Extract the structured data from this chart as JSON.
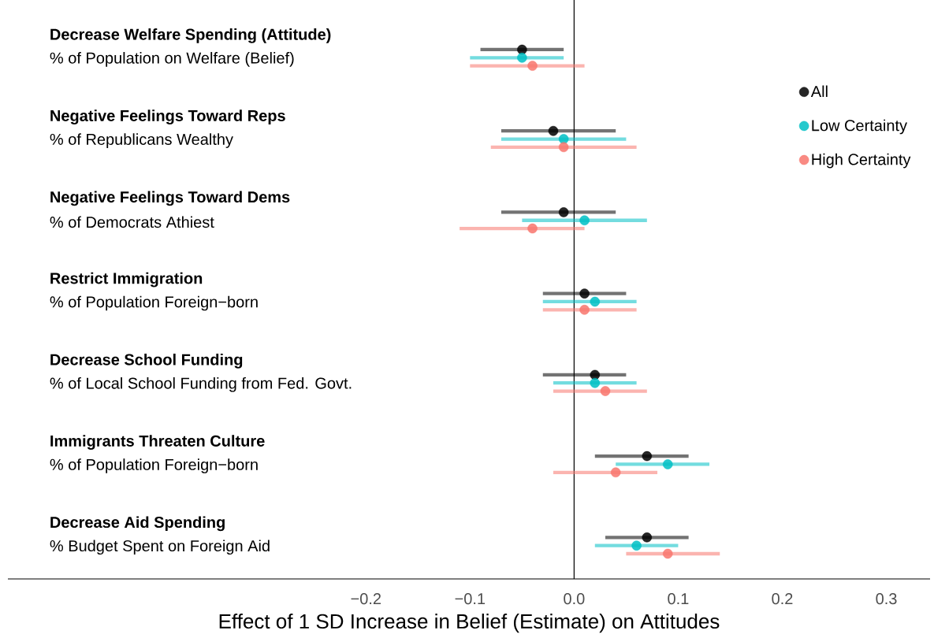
{
  "chart_data": {
    "type": "scatter",
    "orientation": "horizontal",
    "xlabel": "Effect of 1 SD Increase in Belief (Estimate) on Attitudes",
    "categories": [
      "Decrease Welfare Spending (Attitude)",
      "Negative Feelings Toward Reps",
      "Negative Feelings Toward Dems",
      "Restrict Immigration",
      "Decrease School Funding",
      "Immigrants Threaten Culture",
      "Decrease Aid Spending"
    ],
    "annotations": [
      "% of Population on Welfare (Belief)",
      "% of Republicans Wealthy",
      "% of Democrats Athiest",
      "% of Population Foreign−born",
      "% of Local School Funding from Fed. Govt.",
      "% of Population Foreign−born",
      "% Budget Spent on Foreign Aid"
    ],
    "series": [
      {
        "name": "All",
        "color": "#000000",
        "values": [
          -0.05,
          -0.02,
          -0.01,
          0.01,
          0.02,
          0.07,
          0.07
        ],
        "errors": [
          [
            -0.09,
            -0.01
          ],
          [
            -0.07,
            0.04
          ],
          [
            -0.07,
            0.04
          ],
          [
            -0.03,
            0.05
          ],
          [
            -0.03,
            0.05
          ],
          [
            0.02,
            0.11
          ],
          [
            0.03,
            0.11
          ]
        ]
      },
      {
        "name": "Low Certainty",
        "color": "#00bfc4",
        "values": [
          -0.05,
          -0.01,
          0.01,
          0.02,
          0.02,
          0.09,
          0.06
        ],
        "errors": [
          [
            -0.1,
            -0.01
          ],
          [
            -0.07,
            0.05
          ],
          [
            -0.05,
            0.07
          ],
          [
            -0.03,
            0.06
          ],
          [
            -0.02,
            0.06
          ],
          [
            0.04,
            0.13
          ],
          [
            0.02,
            0.1
          ]
        ]
      },
      {
        "name": "High Certainty",
        "color": "#f8766d",
        "values": [
          -0.04,
          -0.01,
          -0.04,
          0.01,
          0.03,
          0.04,
          0.09
        ],
        "errors": [
          [
            -0.1,
            0.01
          ],
          [
            -0.08,
            0.06
          ],
          [
            -0.11,
            0.01
          ],
          [
            -0.03,
            0.06
          ],
          [
            -0.02,
            0.07
          ],
          [
            -0.02,
            0.08
          ],
          [
            0.05,
            0.14
          ]
        ]
      }
    ],
    "xlim": [
      -0.544,
      0.342
    ],
    "xticks": [
      {
        "value": -0.2,
        "label": "−0.2"
      },
      {
        "value": -0.1,
        "label": "−0.1"
      },
      {
        "value": 0,
        "label": "0.0"
      },
      0.1,
      0.2,
      0.3
    ],
    "ref_lines": [
      {
        "axis": "x",
        "value": 0,
        "color": "#000000"
      }
    ],
    "marker": "circle",
    "legend": "right",
    "grid": false
  }
}
